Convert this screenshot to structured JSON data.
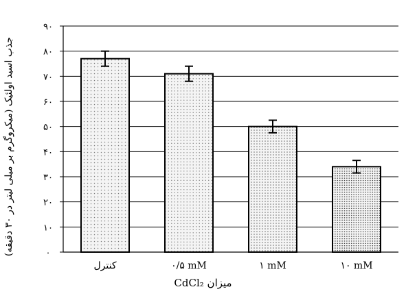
{
  "chart_data": {
    "type": "bar",
    "title": "",
    "xlabel": "میزان CdCl₂",
    "ylabel": "جذب اسید اولئیک (میکروگرم بر میلی لیتر در ۳۰ دقیقه)",
    "ylim": [
      0,
      90
    ],
    "yticks": [
      "۰",
      "۱۰",
      "۲۰",
      "۳۰",
      "۴۰",
      "۵۰",
      "۶۰",
      "۷۰",
      "۸۰",
      "۹۰"
    ],
    "ytick_values": [
      0,
      10,
      20,
      30,
      40,
      50,
      60,
      70,
      80,
      90
    ],
    "categories": [
      "کنترل",
      "۰/۵ mM",
      "۱ mM",
      "۱۰ mM"
    ],
    "values": [
      77,
      71,
      50,
      34
    ],
    "error": [
      3,
      3,
      2.5,
      2.5
    ],
    "grid": true,
    "legend": "none",
    "bar_fill": "#f4f4f4",
    "bar_dot_colors": [
      "#7a7a7a",
      "#8a8a8a",
      "#666666",
      "#333333"
    ],
    "bar_edge": "#000000"
  }
}
